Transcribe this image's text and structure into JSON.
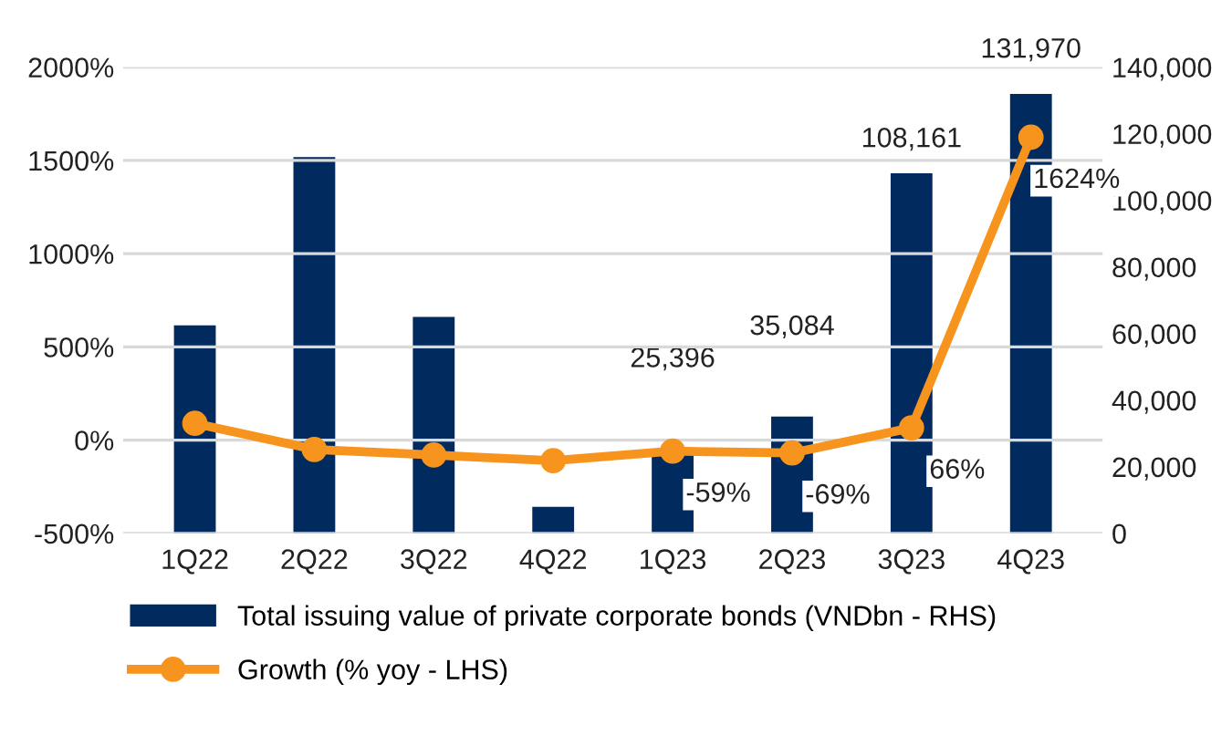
{
  "chart_data": {
    "type": "bar",
    "categories": [
      "1Q22",
      "2Q22",
      "3Q22",
      "4Q22",
      "1Q23",
      "2Q23",
      "3Q23",
      "4Q23"
    ],
    "series": [
      {
        "name": "Total issuing value of private corporate bonds (VNDbn - RHS)",
        "axis": "y2",
        "color": "#012a5e",
        "values": [
          62500,
          113000,
          65000,
          8000,
          25396,
          35084,
          108161,
          131970
        ],
        "value_labels": [
          null,
          null,
          null,
          null,
          "25,396",
          "35,084",
          "108,161",
          "131,970"
        ]
      },
      {
        "name": "Growth (% yoy - LHS)",
        "type": "line",
        "color": "#f7941d",
        "marker": "circle",
        "values": [
          90,
          -50,
          -80,
          -110,
          -59,
          -69,
          66,
          1624
        ],
        "value_labels": [
          null,
          null,
          null,
          null,
          "-59%",
          "-69%",
          "66%",
          "1624%"
        ]
      }
    ],
    "ylim": [
      -500,
      2000
    ],
    "yticks": [
      {
        "value": -500,
        "label": "-500%"
      },
      {
        "value": 0,
        "label": "0%"
      },
      {
        "value": 500,
        "label": "500%"
      },
      {
        "value": 1000,
        "label": "1000%"
      },
      {
        "value": 1500,
        "label": "1500%"
      },
      {
        "value": 2000,
        "label": "2000%"
      }
    ],
    "y2lim": [
      0,
      140000
    ],
    "y2ticks": [
      0,
      {
        "value": 20000,
        "label": "20,000"
      },
      {
        "value": 40000,
        "label": "40,000"
      },
      {
        "value": 60000,
        "label": "60,000"
      },
      {
        "value": 80000,
        "label": "80,000"
      },
      {
        "value": 100000,
        "label": "100,000"
      },
      {
        "value": 120000,
        "label": "120,000"
      },
      {
        "value": 140000,
        "label": "140,000"
      }
    ],
    "grid": "y",
    "legend": "bottom"
  }
}
